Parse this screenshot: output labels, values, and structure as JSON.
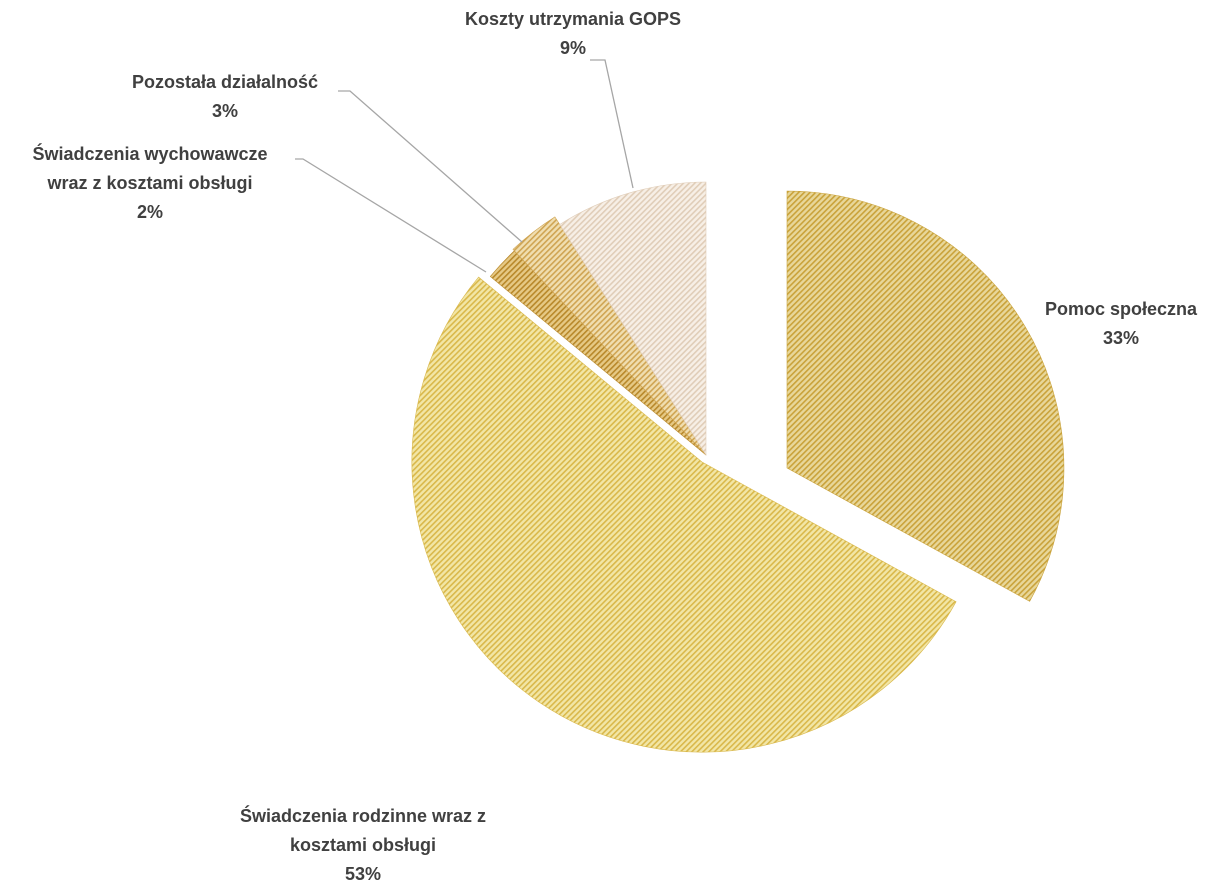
{
  "chart_data": {
    "type": "pie",
    "exploded": true,
    "legend": "none",
    "slices": [
      {
        "label": "Pomoc społeczna",
        "label_lines": [
          "Pomoc społeczna"
        ],
        "value": 33,
        "value_label": "33%",
        "color_base": "#e8d79a",
        "color_stripe": "#c9a23a"
      },
      {
        "label": "Świadczenia rodzinne wraz z kosztami obsługi",
        "label_lines": [
          "Świadczenia rodzinne wraz z",
          "kosztami obsługi"
        ],
        "value": 53,
        "value_label": "53%",
        "color_base": "#f2e6a6",
        "color_stripe": "#d9b84a"
      },
      {
        "label": "Świadczenia wychowawcze wraz z kosztami obsługi",
        "label_lines": [
          "Świadczenia wychowawcze",
          "wraz z kosztami obsługi"
        ],
        "value": 2,
        "value_label": "2%",
        "color_base": "#e6c985",
        "color_stripe": "#b8882a"
      },
      {
        "label": "Pozostała działalność",
        "label_lines": [
          "Pozostała działalność"
        ],
        "value": 3,
        "value_label": "3%",
        "color_base": "#f0deb0",
        "color_stripe": "#cfa452"
      },
      {
        "label": "Koszty utrzymania GOPS",
        "label_lines": [
          "Koszty utrzymania GOPS"
        ],
        "value": 9,
        "value_label": "9%",
        "color_base": "#f7efe6",
        "color_stripe": "#e0cdb8"
      }
    ]
  }
}
